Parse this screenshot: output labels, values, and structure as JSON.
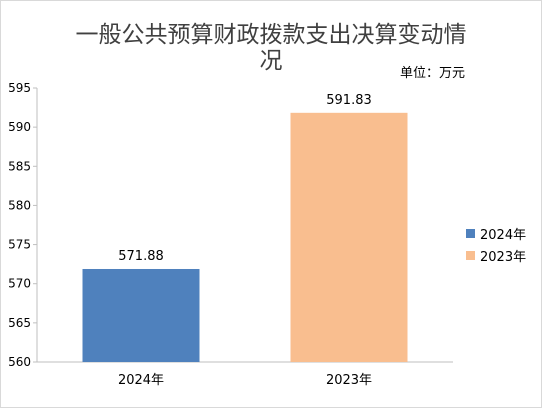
{
  "chart_data": {
    "type": "bar",
    "title_line1": "一般公共预算财政拨款支出决算变动情",
    "title_line2": "况",
    "unit": "单位：万元",
    "categories": [
      "2024年",
      "2023年"
    ],
    "values": [
      571.88,
      591.83
    ],
    "data_labels": [
      "571.88",
      "591.83"
    ],
    "colors": [
      "#4f81bd",
      "#f9be8f"
    ],
    "ylim": [
      560,
      595
    ],
    "yticks": [
      560,
      565,
      570,
      575,
      580,
      585,
      590,
      595
    ],
    "ytick_labels": [
      "560",
      "565",
      "570",
      "575",
      "580",
      "585",
      "590",
      "595"
    ],
    "legend": [
      {
        "label": "2024年",
        "color": "#4f81bd"
      },
      {
        "label": "2023年",
        "color": "#f9be8f"
      }
    ],
    "legend_position": "right",
    "grid": false
  }
}
